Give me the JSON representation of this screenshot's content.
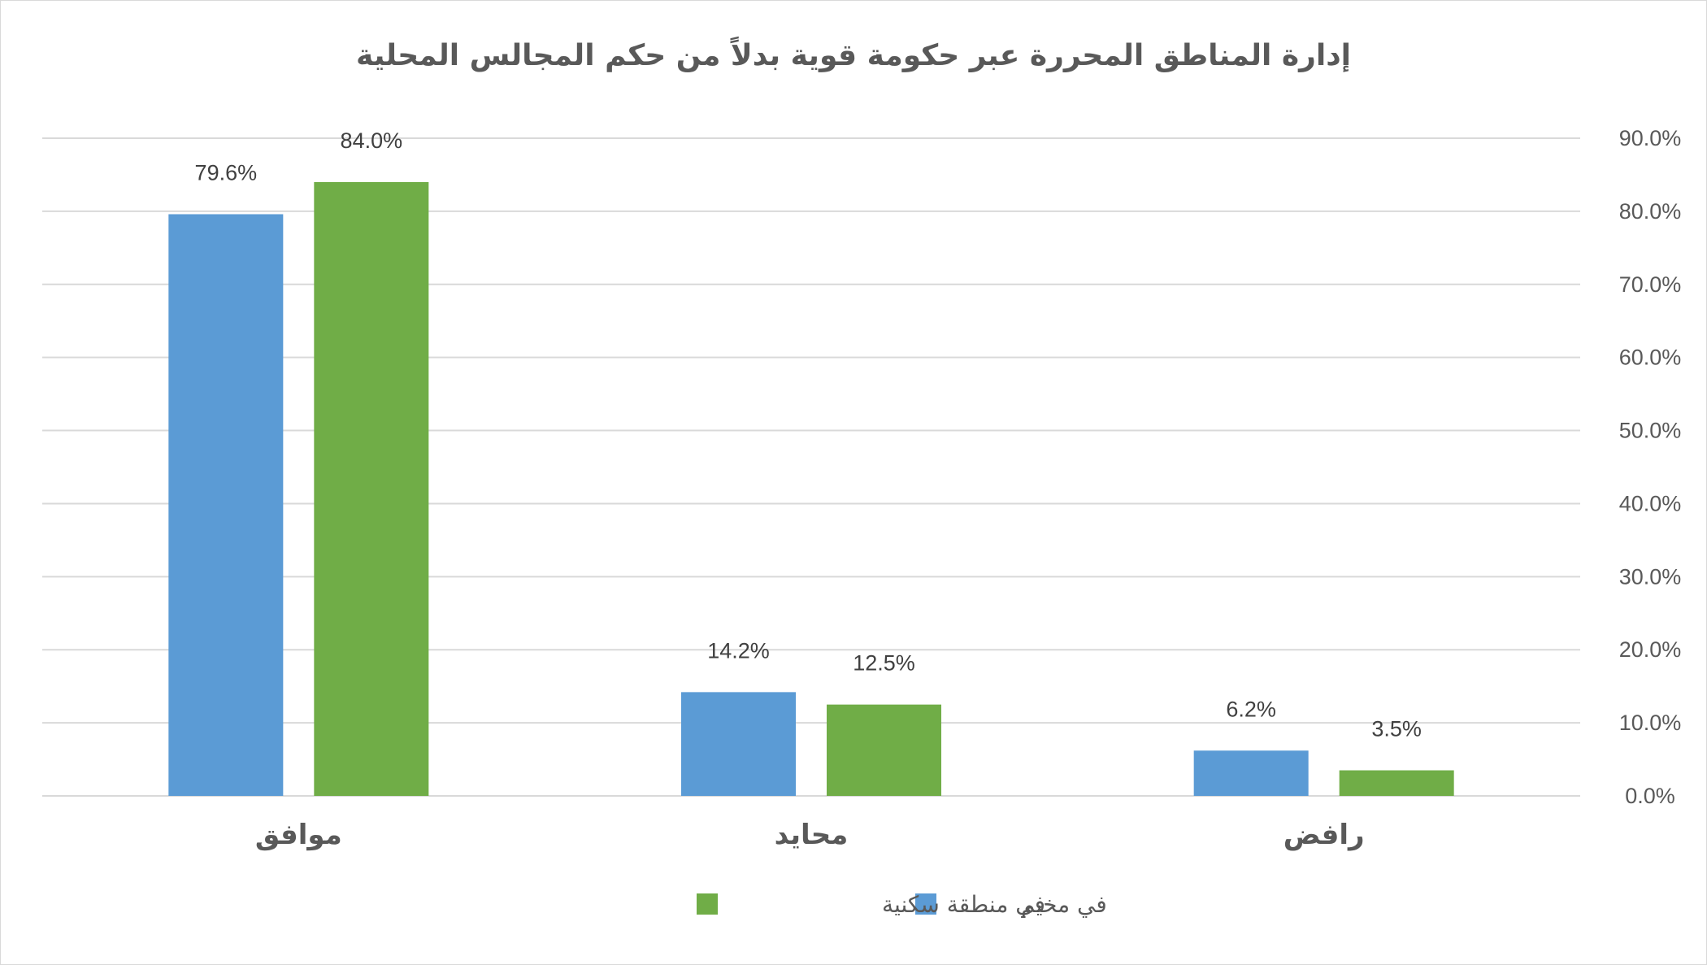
{
  "chart_data": {
    "type": "bar",
    "title": "إدارة المناطق المحررة عبر حكومة قوية بدلاً من حكم المجالس المحلية",
    "categories": [
      "موافق",
      "محايد",
      "رافض"
    ],
    "series": [
      {
        "name": "في مخيم",
        "values": [
          79.6,
          14.2,
          6.2
        ],
        "labels": [
          "79.6%",
          "14.2%",
          "6.2%"
        ],
        "color": "#5b9bd5"
      },
      {
        "name": "في منطقة سكنية",
        "values": [
          84.0,
          12.5,
          3.5
        ],
        "labels": [
          "84.0%",
          "12.5%",
          "3.5%"
        ],
        "color": "#70ad47"
      }
    ],
    "ylim": [
      0,
      90
    ],
    "yticks": [
      "0.0%",
      "10.0%",
      "20.0%",
      "30.0%",
      "40.0%",
      "50.0%",
      "60.0%",
      "70.0%",
      "80.0%",
      "90.0%"
    ],
    "grid": true,
    "y_axis_side": "right",
    "legend_position": "bottom"
  }
}
